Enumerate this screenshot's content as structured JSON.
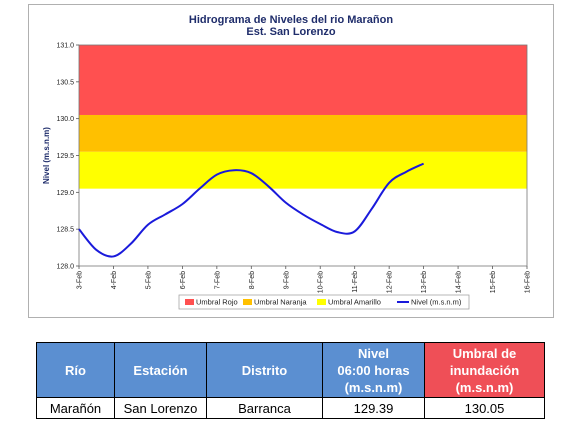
{
  "chart_data": {
    "type": "line",
    "title": "Hidrograma de Niveles del rio Marañon",
    "subtitle": "Est. San Lorenzo",
    "ylabel": "Nivel (m.s.n.m)",
    "xlabel": "",
    "ylim": [
      128.0,
      131.0
    ],
    "yticks": [
      "128.0",
      "128.5",
      "129.0",
      "129.5",
      "130.0",
      "130.5",
      "131.0"
    ],
    "categories": [
      "3-Feb",
      "4-Feb",
      "5-Feb",
      "6-Feb",
      "7-Feb",
      "8-Feb",
      "9-Feb",
      "10-Feb",
      "11-Feb",
      "12-Feb",
      "13-Feb",
      "14-Feb",
      "15-Feb",
      "16-Feb"
    ],
    "bands": [
      {
        "name": "Umbral Rojo",
        "from": 130.05,
        "to": 131.0,
        "color": "#ff5050"
      },
      {
        "name": "Umbral Naranja",
        "from": 129.55,
        "to": 130.05,
        "color": "#ffc000"
      },
      {
        "name": "Umbral Amarillo",
        "from": 129.05,
        "to": 129.55,
        "color": "#ffff00"
      }
    ],
    "series": [
      {
        "name": "Nivel (m.s.n.m)",
        "color": "#1a1adb",
        "points": [
          {
            "x": 0,
            "y": 128.5
          },
          {
            "x": 0.5,
            "y": 128.22
          },
          {
            "x": 1,
            "y": 128.13
          },
          {
            "x": 1.5,
            "y": 128.3
          },
          {
            "x": 2,
            "y": 128.56
          },
          {
            "x": 2.5,
            "y": 128.7
          },
          {
            "x": 3,
            "y": 128.84
          },
          {
            "x": 3.5,
            "y": 129.05
          },
          {
            "x": 4,
            "y": 129.24
          },
          {
            "x": 4.5,
            "y": 129.3
          },
          {
            "x": 5,
            "y": 129.26
          },
          {
            "x": 5.5,
            "y": 129.08
          },
          {
            "x": 6,
            "y": 128.86
          },
          {
            "x": 6.5,
            "y": 128.7
          },
          {
            "x": 7,
            "y": 128.57
          },
          {
            "x": 7.5,
            "y": 128.46
          },
          {
            "x": 8,
            "y": 128.47
          },
          {
            "x": 8.5,
            "y": 128.78
          },
          {
            "x": 9,
            "y": 129.13
          },
          {
            "x": 9.5,
            "y": 129.28
          },
          {
            "x": 10,
            "y": 129.39
          }
        ]
      }
    ],
    "legend": [
      "Umbral Rojo",
      "Umbral Naranja",
      "Umbral Amarillo",
      "Nivel (m.s.n.m)"
    ],
    "legend_position": "bottom",
    "grid": false
  },
  "table": {
    "headers": [
      "Río",
      "Estación",
      "Distrito",
      "Nivel 06:00 horas (m.s.n.m)",
      "Umbral de inundación (m.s.n.m)"
    ],
    "header_lines": [
      [
        "Río"
      ],
      [
        "Estación"
      ],
      [
        "Distrito"
      ],
      [
        "Nivel",
        "06:00 horas",
        "(m.s.n.m)"
      ],
      [
        "Umbral de",
        "inundación",
        "(m.s.n.m)"
      ]
    ],
    "row": [
      "Marañón",
      "San Lorenzo",
      "Barranca",
      "129.39",
      "130.05"
    ],
    "colors": {
      "header_blue": "#5b8fd1",
      "header_red": "#ef4f57"
    }
  }
}
